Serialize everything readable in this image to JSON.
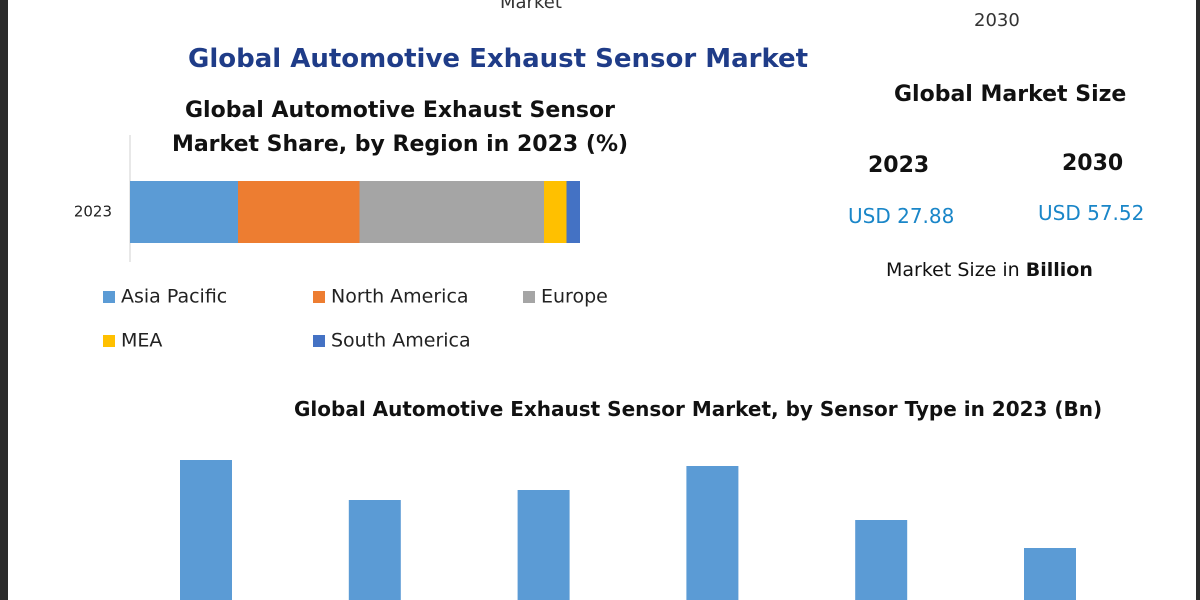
{
  "header": {
    "top_left": "Market",
    "top_right": "2030",
    "title": "Global Automotive Exhaust Sensor Market"
  },
  "market_size": {
    "title": "Global Market Size",
    "years": [
      "2023",
      "2030"
    ],
    "values": [
      "USD 27.88",
      "USD 57.52"
    ],
    "note": "Market Size in ",
    "note_unit": "Billion"
  },
  "chart_data": [
    {
      "type": "stacked_bar",
      "title": "Global Automotive Exhaust Sensor Market Share, by Region in 2023 (%)",
      "categories": [
        "2023"
      ],
      "xlim": [
        0,
        100
      ],
      "series": [
        {
          "name": "Asia Pacific",
          "color": "#5b9bd5",
          "values": [
            24
          ]
        },
        {
          "name": "North America",
          "color": "#ed7d31",
          "values": [
            27
          ]
        },
        {
          "name": "Europe",
          "color": "#a5a5a5",
          "values": [
            41
          ]
        },
        {
          "name": "MEA",
          "color": "#ffc000",
          "values": [
            5
          ]
        },
        {
          "name": "South America",
          "color": "#4472c4",
          "values": [
            3
          ]
        }
      ]
    },
    {
      "type": "bar",
      "title": "Global Automotive Exhaust Sensor Market, by Sensor Type in 2023 (Bn)",
      "categories": [
        null,
        null,
        null,
        null,
        null,
        null
      ],
      "values": [
        7.0,
        5.0,
        5.5,
        6.7,
        4.0,
        2.6
      ],
      "color": "#5b9bd5",
      "ylim": [
        0,
        9
      ]
    }
  ]
}
